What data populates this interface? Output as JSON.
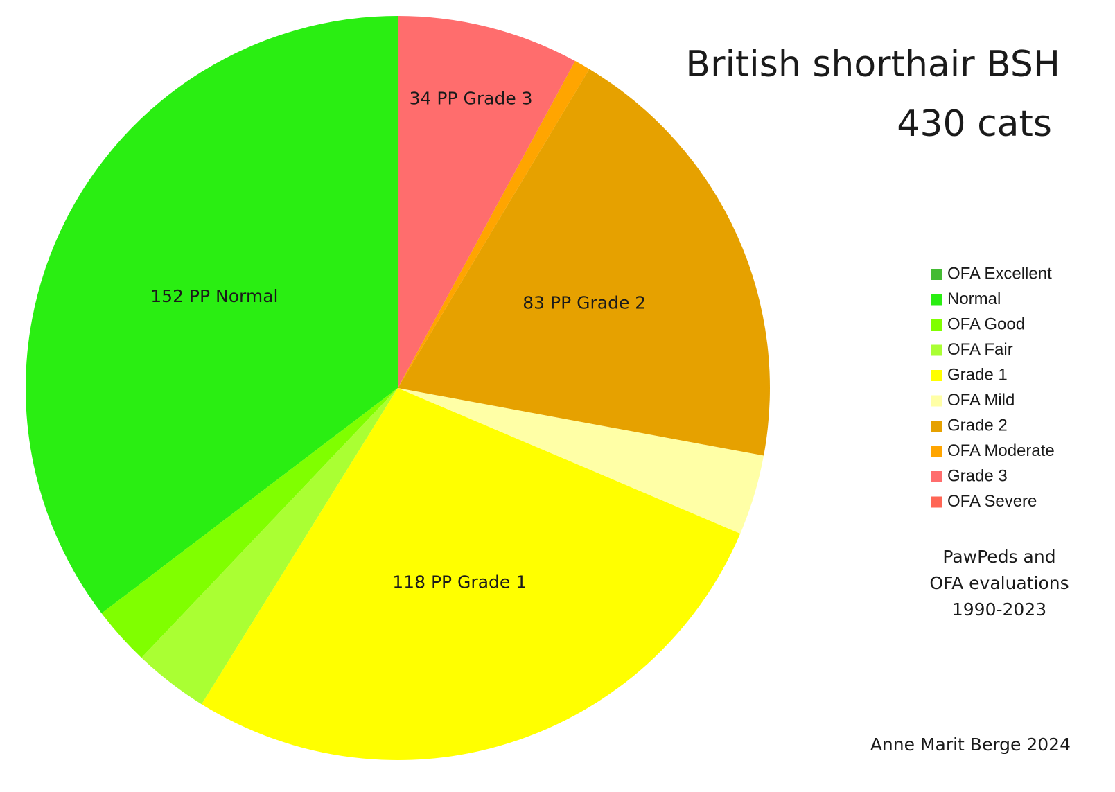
{
  "chart_data": {
    "type": "pie",
    "title": "British shorthair BSH",
    "subtitle": "430 cats",
    "categories": [
      "OFA Excellent",
      "Normal",
      "OFA Good",
      "OFA Fair",
      "Grade 1",
      "OFA Mild",
      "Grade 2",
      "OFA Moderate",
      "Grade 3",
      "OFA Severe"
    ],
    "values": [
      0,
      152,
      11,
      14,
      118,
      15,
      83,
      3,
      34,
      0
    ],
    "value_labels": [
      null,
      "152 PP Normal",
      null,
      null,
      "118 PP Grade 1",
      null,
      "83 PP Grade 2",
      null,
      "34 PP Grade 3",
      null
    ],
    "colors": [
      "#44bb33",
      "#2aee12",
      "#80ff00",
      "#aaff33",
      "#ffff00",
      "#ffffa6",
      "#e6a100",
      "#ffa500",
      "#ff6d6d",
      "#ff6655"
    ],
    "direction": "counterclockwise",
    "legend": "right",
    "note": [
      "PawPeds and",
      "OFA evaluations",
      "1990-2023"
    ],
    "author": "Anne Marit Berge 2024"
  }
}
